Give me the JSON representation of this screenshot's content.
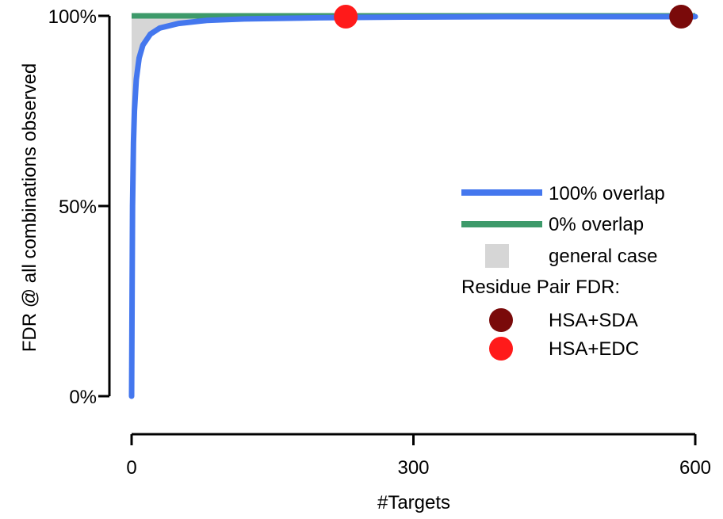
{
  "chart_data": {
    "type": "line",
    "title": "",
    "xlabel": "#Targets",
    "ylabel": "FDR @ all combinations observed",
    "xlim": [
      0,
      600
    ],
    "ylim": [
      0,
      1
    ],
    "x_ticks": [
      {
        "value": 0,
        "label": "0"
      },
      {
        "value": 300,
        "label": "300"
      },
      {
        "value": 600,
        "label": "600"
      }
    ],
    "y_ticks": [
      {
        "value": 0,
        "label": "0%"
      },
      {
        "value": 0.5,
        "label": "50%"
      },
      {
        "value": 1,
        "label": "100%"
      }
    ],
    "series": [
      {
        "name": "100% overlap",
        "color": "#4477ee",
        "x": [
          0,
          1,
          2,
          3,
          5,
          8,
          12,
          20,
          30,
          50,
          80,
          120,
          200,
          300,
          400,
          500,
          600
        ],
        "y": [
          0.0,
          0.5,
          0.667,
          0.75,
          0.833,
          0.889,
          0.923,
          0.952,
          0.968,
          0.98,
          0.988,
          0.992,
          0.995,
          0.997,
          0.998,
          0.998,
          0.998
        ]
      },
      {
        "name": "0% overlap",
        "color": "#3d9a6a",
        "x": [
          0,
          600
        ],
        "y": [
          1.0,
          1.0
        ]
      }
    ],
    "area": {
      "name": "general case",
      "color": "#d6d6d6"
    },
    "points_legend_title": "Residue Pair FDR:",
    "points": [
      {
        "name": "HSA+SDA",
        "x": 585,
        "y": 0.998,
        "color": "#7a0a0a"
      },
      {
        "name": "HSA+EDC",
        "x": 228,
        "y": 0.998,
        "color": "#ff1a1a"
      }
    ],
    "legend_position": "right",
    "grid": false
  }
}
